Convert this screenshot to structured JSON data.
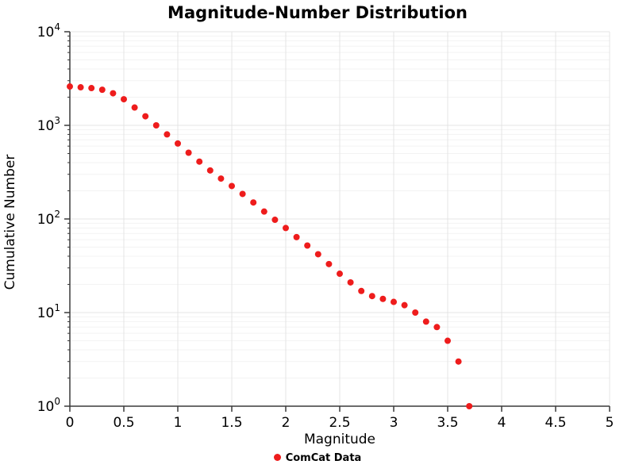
{
  "title": "Magnitude-Number Distribution",
  "xlabel": "Magnitude",
  "ylabel": "Cumulative Number",
  "legend": {
    "label": "ComCat Data"
  },
  "colors": {
    "point": "#ee1c1c",
    "axis": "#3a3a3a",
    "grid_major": "#e4e4e4",
    "grid_minor": "#f3f3f3",
    "tick_text": "#000000"
  },
  "chart_data": {
    "type": "scatter",
    "title": "Magnitude-Number Distribution",
    "xlabel": "Magnitude",
    "ylabel": "Cumulative Number",
    "xlim": [
      0,
      5
    ],
    "yscale": "log",
    "ylim": [
      1,
      10000
    ],
    "ylog_exponents": [
      0,
      1,
      2,
      3,
      4
    ],
    "x_ticks": [
      0,
      0.5,
      1,
      1.5,
      2,
      2.5,
      3,
      3.5,
      4,
      4.5,
      5
    ],
    "x_tick_labels": [
      "0",
      "0.5",
      "1",
      "1.5",
      "2",
      "2.5",
      "3",
      "3.5",
      "4",
      "4.5",
      "5"
    ],
    "grid": true,
    "legend_position": "bottom",
    "series": [
      {
        "name": "ComCat Data",
        "x": [
          0,
          0.1,
          0.2,
          0.3,
          0.4,
          0.5,
          0.6,
          0.7,
          0.8,
          0.9,
          1.0,
          1.1,
          1.2,
          1.3,
          1.4,
          1.5,
          1.6,
          1.7,
          1.8,
          1.9,
          2.0,
          2.1,
          2.2,
          2.3,
          2.4,
          2.5,
          2.6,
          2.7,
          2.8,
          2.9,
          3.0,
          3.1,
          3.2,
          3.3,
          3.4,
          3.5,
          3.6,
          3.7
        ],
        "y": [
          2600,
          2550,
          2500,
          2400,
          2200,
          1900,
          1550,
          1250,
          1000,
          800,
          640,
          510,
          410,
          330,
          270,
          225,
          185,
          150,
          120,
          98,
          80,
          64,
          52,
          42,
          33,
          26,
          21,
          17,
          15,
          14,
          13,
          12,
          10,
          8,
          7,
          5,
          3,
          1
        ]
      }
    ]
  }
}
